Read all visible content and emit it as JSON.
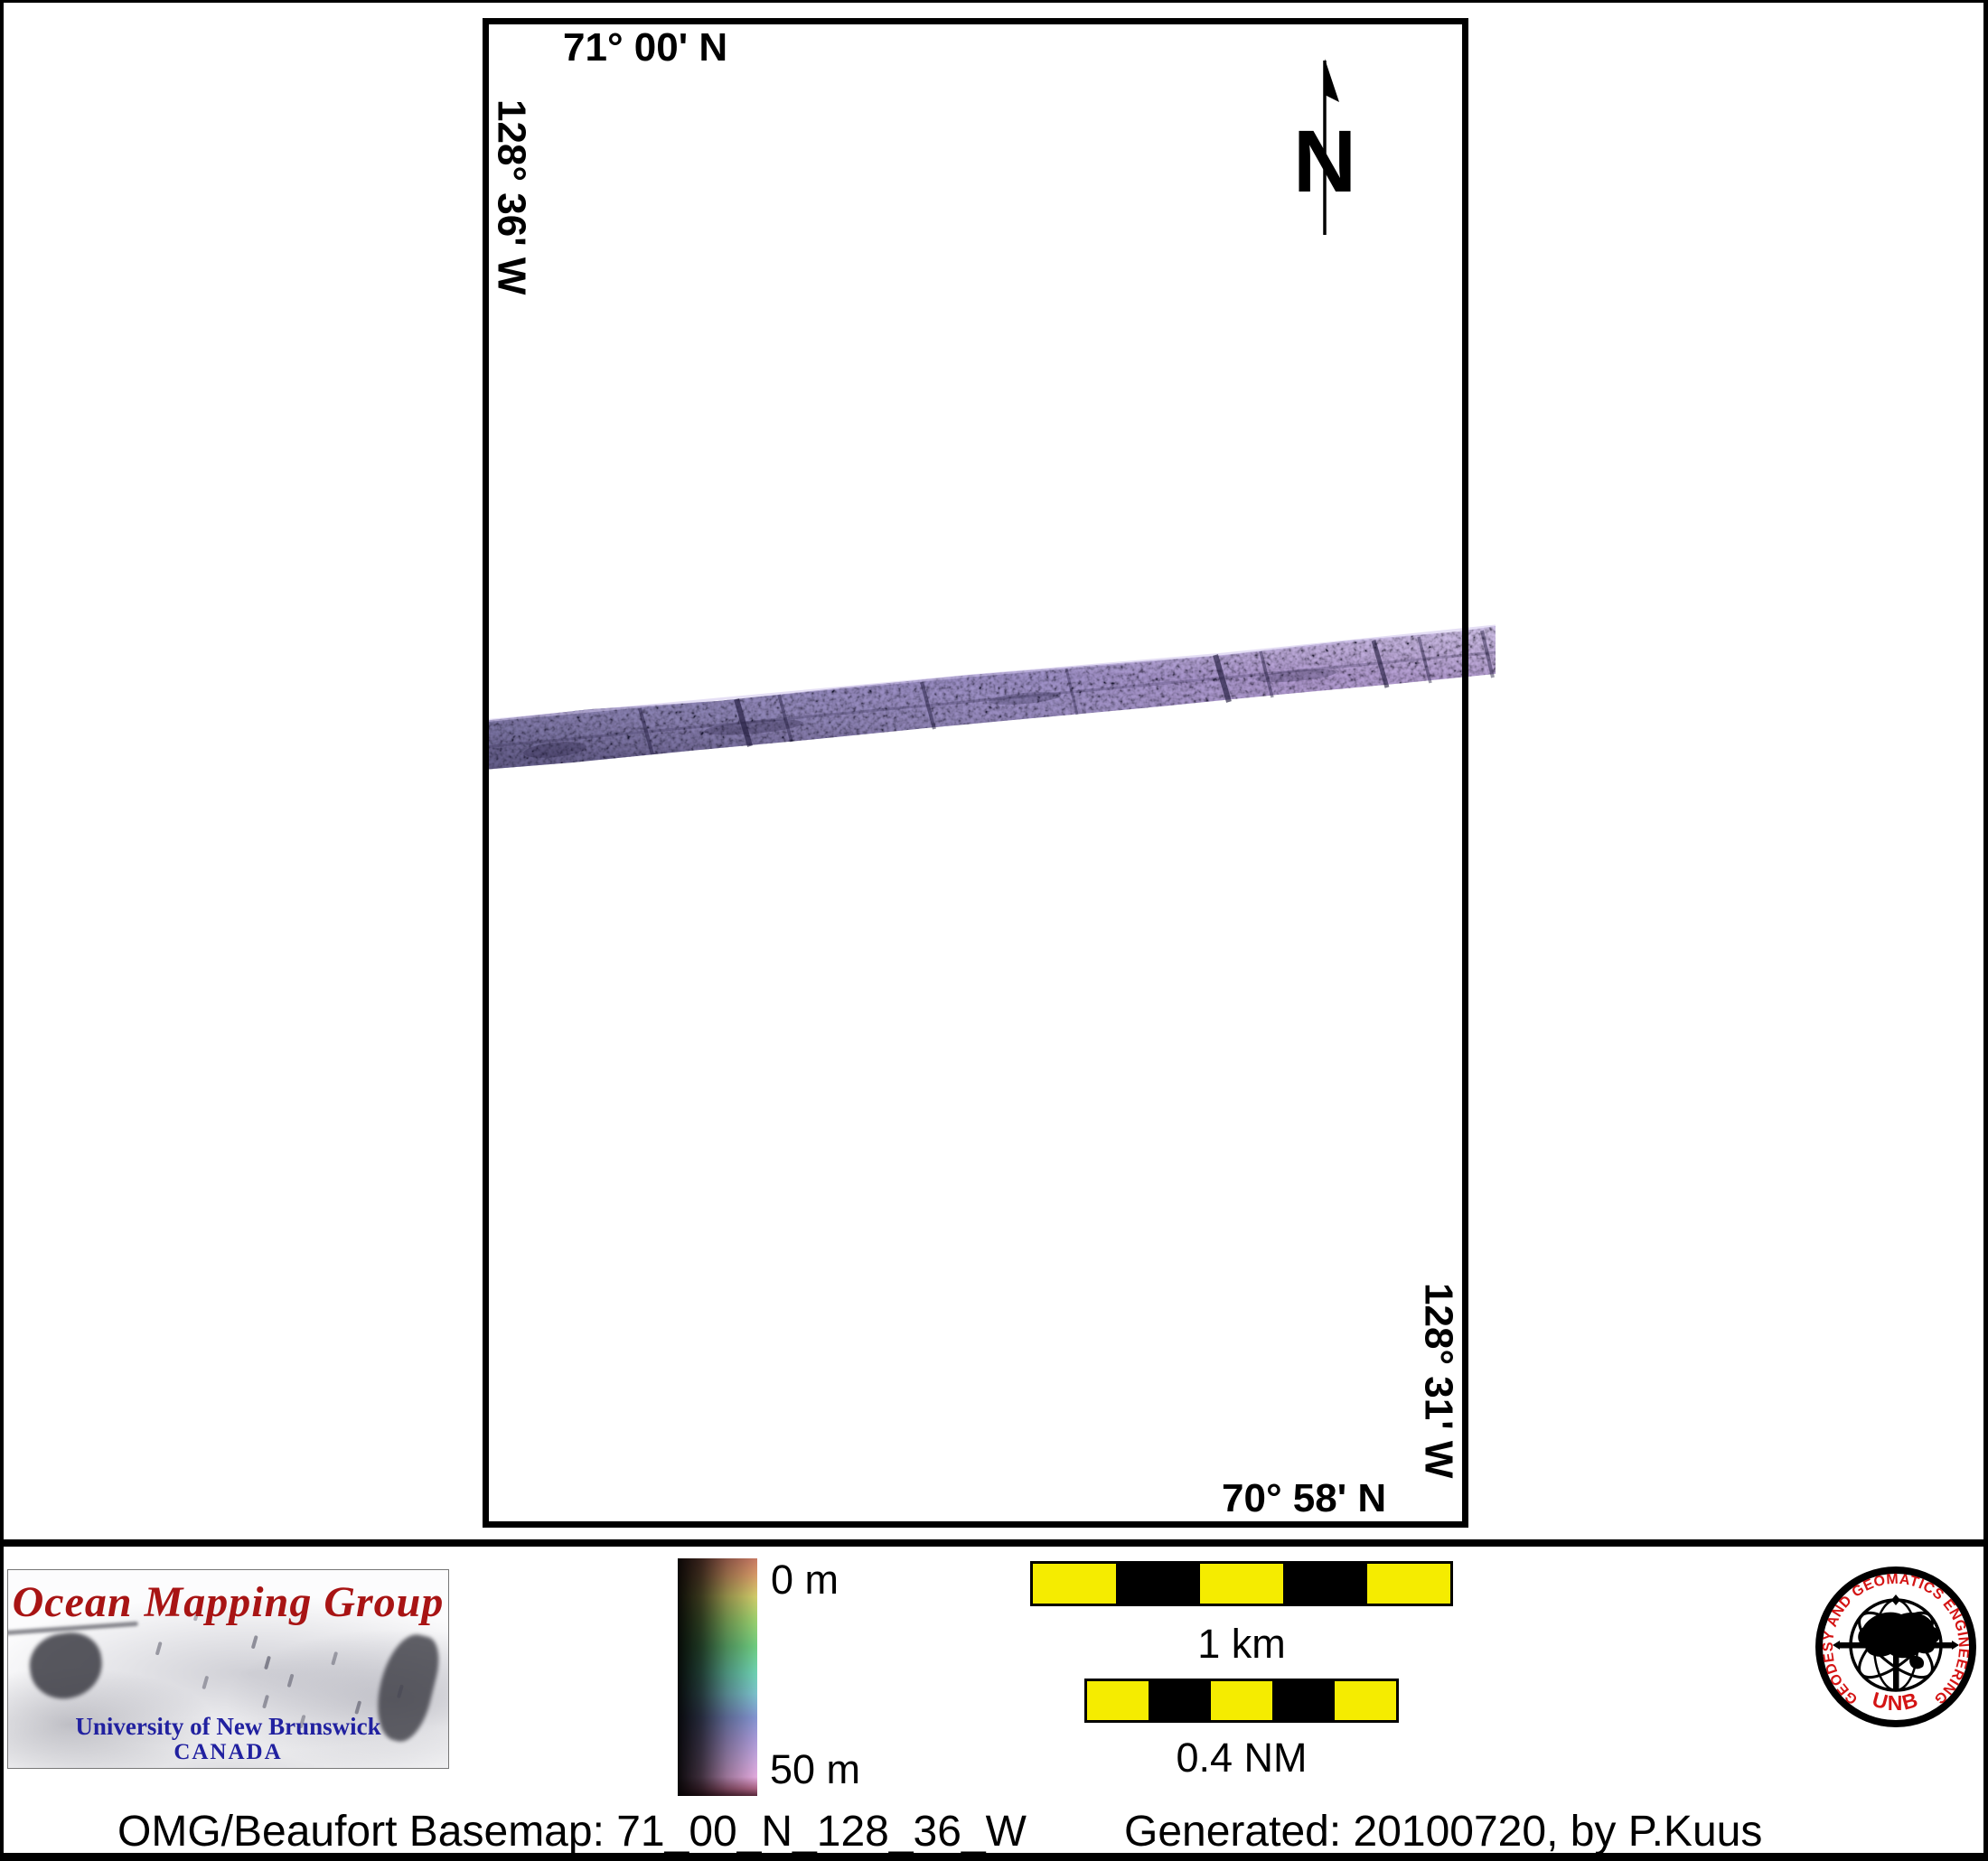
{
  "map": {
    "top_latitude": "71° 00' N",
    "left_longitude": "128° 36' W",
    "right_longitude": "128° 31' W",
    "bottom_latitude": "70° 58' N",
    "north_label": "N"
  },
  "legend": {
    "depth_scale": {
      "top_label": "0 m",
      "bottom_label": "50 m",
      "gradient_stops": [
        {
          "color": "#c87a64",
          "pos": 0
        },
        {
          "color": "#d79a68",
          "pos": 7
        },
        {
          "color": "#d2cc6a",
          "pos": 16
        },
        {
          "color": "#9cd06e",
          "pos": 26
        },
        {
          "color": "#6fcc80",
          "pos": 37
        },
        {
          "color": "#6ed2b2",
          "pos": 48
        },
        {
          "color": "#7cc2cc",
          "pos": 57
        },
        {
          "color": "#8495d2",
          "pos": 67
        },
        {
          "color": "#a89ad8",
          "pos": 76
        },
        {
          "color": "#c9a6dc",
          "pos": 85
        },
        {
          "color": "#e2aade",
          "pos": 92
        },
        {
          "color": "#a86080",
          "pos": 97
        },
        {
          "color": "#58283a",
          "pos": 100
        }
      ]
    },
    "scale_bars": [
      {
        "label": "1 km",
        "segment_colors": [
          "#f5ec00",
          "#000000",
          "#f5ec00",
          "#000000",
          "#f5ec00"
        ]
      },
      {
        "label": "0.4 NM",
        "segment_colors": [
          "#f5ec00",
          "#000000",
          "#f5ec00",
          "#000000",
          "#f5ec00"
        ]
      }
    ]
  },
  "omg_logo": {
    "title": "Ocean Mapping Group",
    "subtitle": "University of New Brunswick",
    "country": "CANADA",
    "title_color": "#a81414",
    "subtitle_color": "#2121a0"
  },
  "unb_logo": {
    "ring_text": "GEODESY AND GEOMATICS ENGINEERING",
    "bottom_text": "UNB",
    "accent_color": "#d41414"
  },
  "caption": {
    "basemap": "OMG/Beaufort Basemap: 71_00_N_128_36_W",
    "generated": "Generated: 20100720, by P.Kuus"
  },
  "swath": {
    "base_color": "#9b90c8",
    "speckle_color": "#191430"
  }
}
